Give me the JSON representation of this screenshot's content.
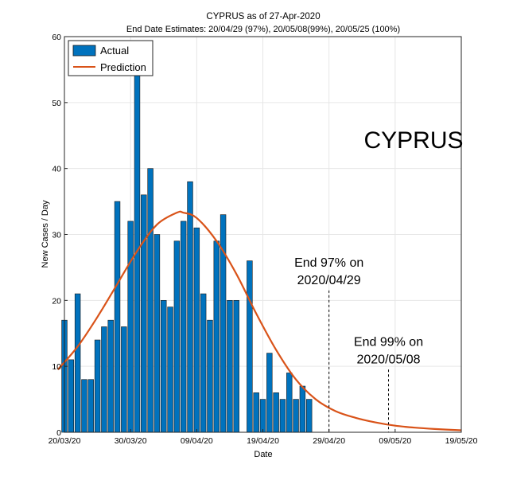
{
  "chart_data": {
    "type": "bar",
    "title": "CYPRUS as of 27-Apr-2020",
    "subtitle": "End Date Estimates: 20/04/29 (97%), 20/05/08(99%), 20/05/25 (100%)",
    "xlabel": "Date",
    "ylabel": "New Cases / Day",
    "xlim": [
      "2020-03-20",
      "2020-05-19"
    ],
    "ylim": [
      0,
      60
    ],
    "y_ticks": [
      0,
      10,
      20,
      30,
      40,
      50,
      60
    ],
    "x_ticks": [
      "20/03/20",
      "30/03/20",
      "09/04/20",
      "19/04/20",
      "29/04/20",
      "09/05/20",
      "19/05/20"
    ],
    "x_tick_dates": [
      "2020-03-20",
      "2020-03-30",
      "2020-04-09",
      "2020-04-19",
      "2020-04-29",
      "2020-05-09",
      "2020-05-19"
    ],
    "grid": true,
    "legend_position": "top-left",
    "big_label": "CYPRUS",
    "colors": {
      "actual": "#0072BD",
      "prediction": "#D95319",
      "grid": "#e6e6e6",
      "axis": "#262626"
    },
    "series": [
      {
        "name": "Actual",
        "type": "bar",
        "dates": [
          "2020-03-20",
          "2020-03-21",
          "2020-03-22",
          "2020-03-23",
          "2020-03-24",
          "2020-03-25",
          "2020-03-26",
          "2020-03-27",
          "2020-03-28",
          "2020-03-29",
          "2020-03-30",
          "2020-03-31",
          "2020-04-01",
          "2020-04-02",
          "2020-04-03",
          "2020-04-04",
          "2020-04-05",
          "2020-04-06",
          "2020-04-07",
          "2020-04-08",
          "2020-04-09",
          "2020-04-10",
          "2020-04-11",
          "2020-04-12",
          "2020-04-13",
          "2020-04-14",
          "2020-04-15",
          "2020-04-16",
          "2020-04-17",
          "2020-04-18",
          "2020-04-19",
          "2020-04-20",
          "2020-04-21",
          "2020-04-22",
          "2020-04-23",
          "2020-04-24",
          "2020-04-25",
          "2020-04-26",
          "2020-04-27"
        ],
        "values": [
          17,
          11,
          21,
          8,
          8,
          14,
          16,
          17,
          35,
          16,
          32,
          55,
          36,
          40,
          30,
          20,
          19,
          29,
          32,
          38,
          31,
          21,
          17,
          29,
          33,
          20,
          20,
          0,
          26,
          6,
          5,
          12,
          6,
          5,
          9,
          5,
          7,
          5,
          0
        ]
      },
      {
        "name": "Prediction",
        "type": "line",
        "dates": [
          "2020-03-19",
          "2020-03-22",
          "2020-03-25",
          "2020-03-28",
          "2020-03-31",
          "2020-04-03",
          "2020-04-06",
          "2020-04-07",
          "2020-04-09",
          "2020-04-12",
          "2020-04-15",
          "2020-04-18",
          "2020-04-21",
          "2020-04-24",
          "2020-04-27",
          "2020-04-30",
          "2020-05-03",
          "2020-05-06",
          "2020-05-09",
          "2020-05-12",
          "2020-05-15",
          "2020-05-19"
        ],
        "values": [
          9.5,
          13,
          17.5,
          22.5,
          27.5,
          31.5,
          33.3,
          33.3,
          32.5,
          29,
          24,
          18,
          12.5,
          8,
          5,
          3.2,
          2.2,
          1.5,
          1,
          0.7,
          0.5,
          0.3
        ]
      }
    ],
    "annotations": [
      {
        "line1": "End 97% on",
        "line2": "2020/04/29",
        "date": "2020-04-29",
        "line_top_value": 21.5
      },
      {
        "line1": "End 99% on",
        "line2": "2020/05/08",
        "date": "2020-05-08",
        "line_top_value": 9.5
      }
    ]
  }
}
